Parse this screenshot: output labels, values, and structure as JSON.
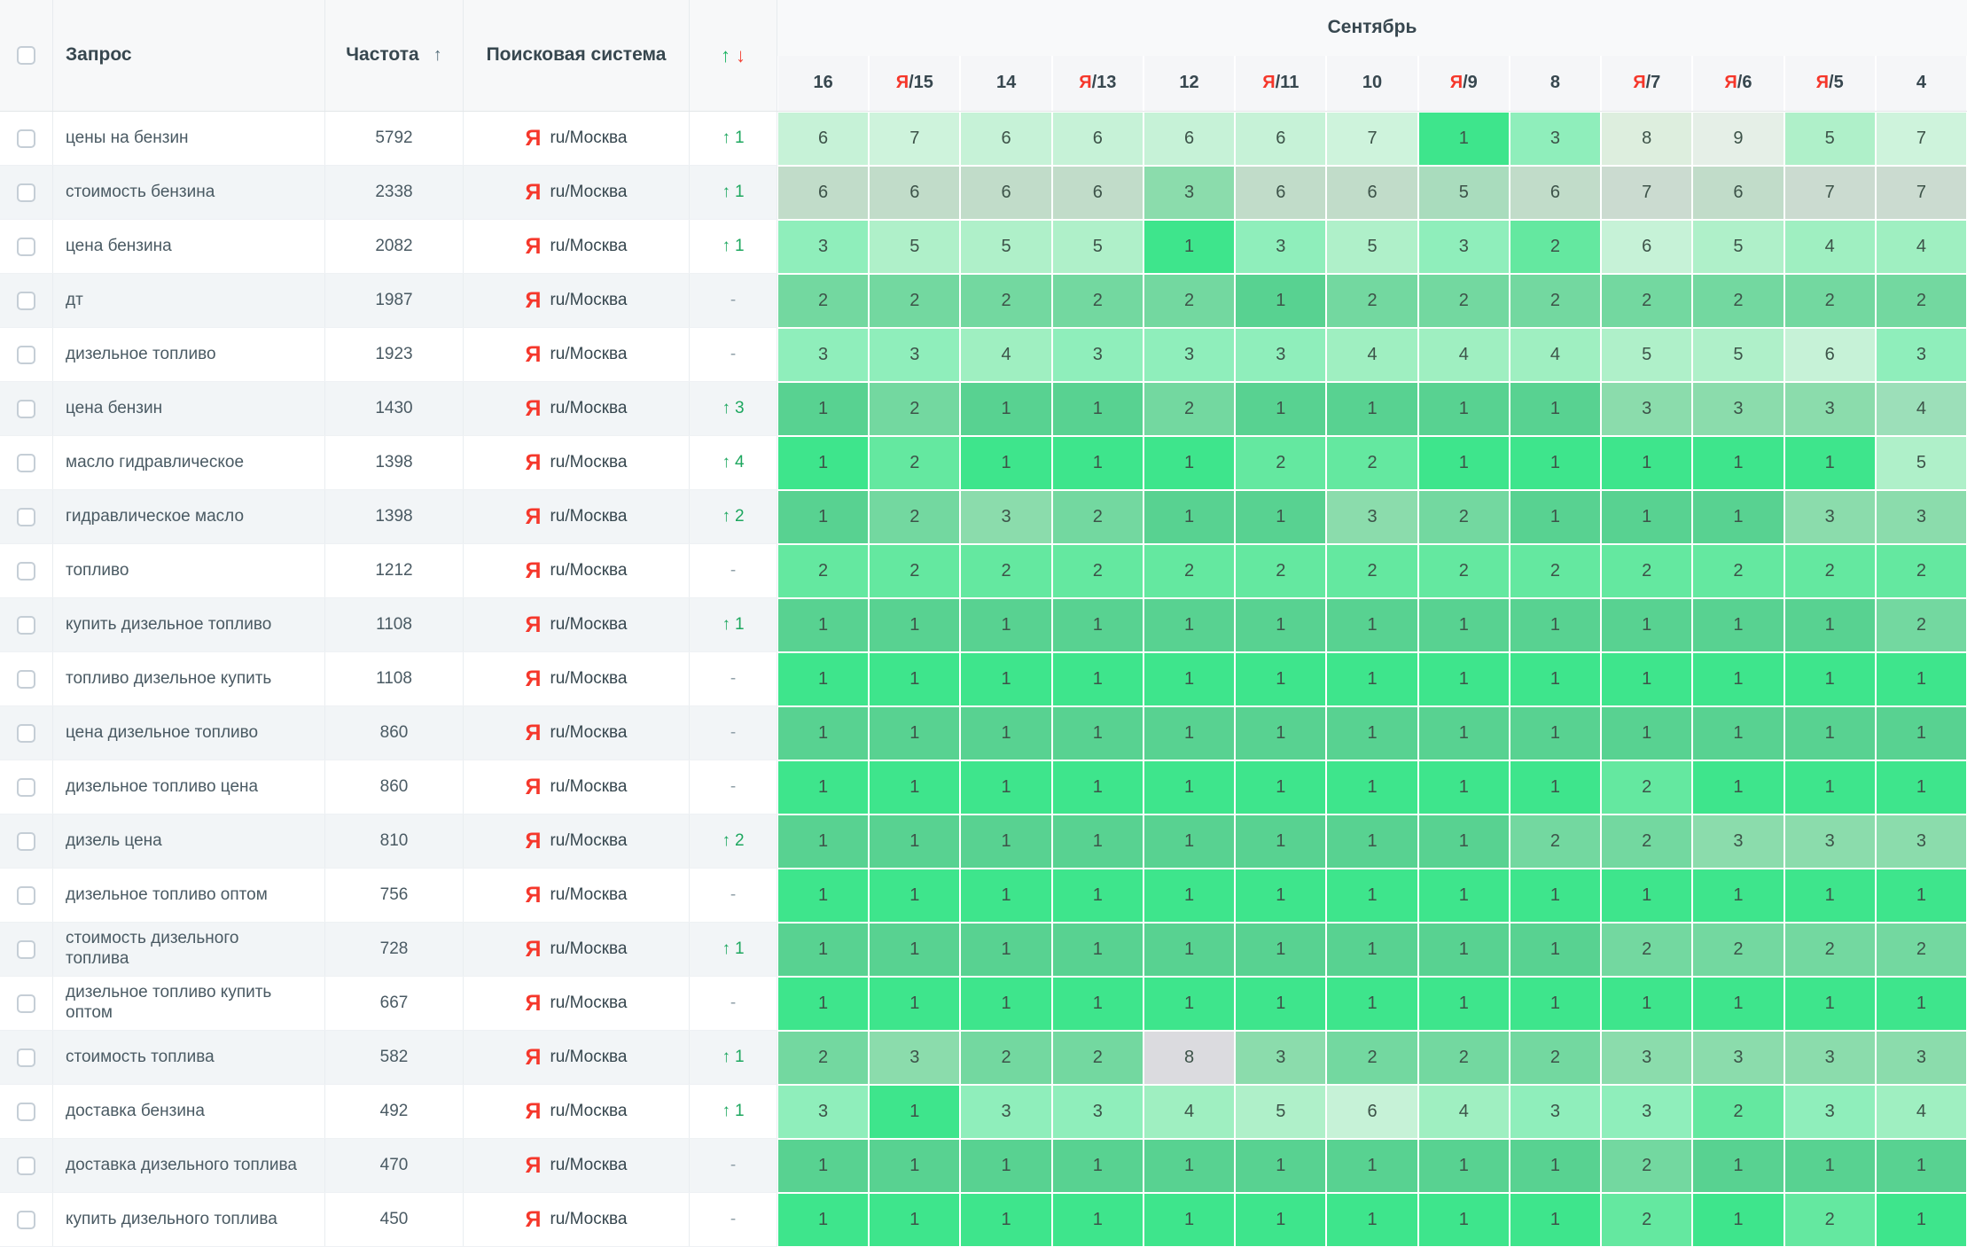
{
  "table": {
    "month": "Сентябрь",
    "columns": {
      "query": "Запрос",
      "frequency": "Частота",
      "frequency_sort_arrow": "↑",
      "engine": "Поисковая система",
      "updown_up": "↑",
      "updown_down": "↓"
    },
    "engine_label": "ru/Москва",
    "yandex_letter": "Я",
    "dash": "-",
    "change_up_arrow": "↑",
    "dates": [
      {
        "day": "16",
        "yandex": false
      },
      {
        "day": "15",
        "yandex": true
      },
      {
        "day": "14",
        "yandex": false
      },
      {
        "day": "13",
        "yandex": true
      },
      {
        "day": "12",
        "yandex": false
      },
      {
        "day": "11",
        "yandex": true
      },
      {
        "day": "10",
        "yandex": false
      },
      {
        "day": "9",
        "yandex": true
      },
      {
        "day": "8",
        "yandex": false
      },
      {
        "day": "7",
        "yandex": true
      },
      {
        "day": "6",
        "yandex": true
      },
      {
        "day": "5",
        "yandex": true
      },
      {
        "day": "4",
        "yandex": false
      }
    ]
  },
  "colors": {
    "accent_red": "#f5372b",
    "change_green": "#1ea75f",
    "stripe_bg": "#f2f5f7",
    "palette_white": {
      "1": "#3ee58c",
      "2": "#64e8a0",
      "3": "#8feebb",
      "4": "#9fefc1",
      "5": "#aff0c9",
      "6": "#c6f2d7",
      "7": "#cef3dc",
      "8": "#ddeede",
      "9": "#e5efe7"
    },
    "palette_stripe": {
      "1": "#58d291",
      "2": "#73d8a0",
      "3": "#8bdcac",
      "4": "#9cdfb9",
      "5": "#a9dcbd",
      "6": "#c1dcc9",
      "7": "#cbdbd0",
      "8": "#dbdbdf",
      "9": "#e1e4e3"
    }
  },
  "rows": [
    {
      "query": "цены на бензин",
      "frequency": "5792",
      "change": 1,
      "positions": [
        6,
        7,
        6,
        6,
        6,
        6,
        7,
        1,
        3,
        8,
        9,
        5,
        7
      ]
    },
    {
      "query": "стоимость бензина",
      "frequency": "2338",
      "change": 1,
      "positions": [
        6,
        6,
        6,
        6,
        3,
        6,
        6,
        5,
        6,
        7,
        6,
        7,
        7
      ]
    },
    {
      "query": "цена бензина",
      "frequency": "2082",
      "change": 1,
      "positions": [
        3,
        5,
        5,
        5,
        1,
        3,
        5,
        3,
        2,
        6,
        5,
        4,
        4
      ]
    },
    {
      "query": "дт",
      "frequency": "1987",
      "change": null,
      "positions": [
        2,
        2,
        2,
        2,
        2,
        1,
        2,
        2,
        2,
        2,
        2,
        2,
        2
      ]
    },
    {
      "query": "дизельное топливо",
      "frequency": "1923",
      "change": null,
      "positions": [
        3,
        3,
        4,
        3,
        3,
        3,
        4,
        4,
        4,
        5,
        5,
        6,
        3
      ]
    },
    {
      "query": "цена бензин",
      "frequency": "1430",
      "change": 3,
      "positions": [
        1,
        2,
        1,
        1,
        2,
        1,
        1,
        1,
        1,
        3,
        3,
        3,
        4
      ]
    },
    {
      "query": "масло гидравлическое",
      "frequency": "1398",
      "change": 4,
      "positions": [
        1,
        2,
        1,
        1,
        1,
        2,
        2,
        1,
        1,
        1,
        1,
        1,
        5
      ]
    },
    {
      "query": "гидравлическое масло",
      "frequency": "1398",
      "change": 2,
      "positions": [
        1,
        2,
        3,
        2,
        1,
        1,
        3,
        2,
        1,
        1,
        1,
        3,
        3
      ]
    },
    {
      "query": "топливо",
      "frequency": "1212",
      "change": null,
      "positions": [
        2,
        2,
        2,
        2,
        2,
        2,
        2,
        2,
        2,
        2,
        2,
        2,
        2
      ]
    },
    {
      "query": "купить дизельное топливо",
      "frequency": "1108",
      "change": 1,
      "positions": [
        1,
        1,
        1,
        1,
        1,
        1,
        1,
        1,
        1,
        1,
        1,
        1,
        2
      ]
    },
    {
      "query": "топливо дизельное купить",
      "frequency": "1108",
      "change": null,
      "positions": [
        1,
        1,
        1,
        1,
        1,
        1,
        1,
        1,
        1,
        1,
        1,
        1,
        1
      ]
    },
    {
      "query": "цена дизельное топливо",
      "frequency": "860",
      "change": null,
      "positions": [
        1,
        1,
        1,
        1,
        1,
        1,
        1,
        1,
        1,
        1,
        1,
        1,
        1
      ]
    },
    {
      "query": "дизельное топливо цена",
      "frequency": "860",
      "change": null,
      "positions": [
        1,
        1,
        1,
        1,
        1,
        1,
        1,
        1,
        1,
        2,
        1,
        1,
        1
      ]
    },
    {
      "query": "дизель цена",
      "frequency": "810",
      "change": 2,
      "positions": [
        1,
        1,
        1,
        1,
        1,
        1,
        1,
        1,
        2,
        2,
        3,
        3,
        3
      ]
    },
    {
      "query": "дизельное топливо оптом",
      "frequency": "756",
      "change": null,
      "positions": [
        1,
        1,
        1,
        1,
        1,
        1,
        1,
        1,
        1,
        1,
        1,
        1,
        1
      ]
    },
    {
      "query": "стоимость дизельного\nтоплива",
      "frequency": "728",
      "change": 1,
      "positions": [
        1,
        1,
        1,
        1,
        1,
        1,
        1,
        1,
        1,
        2,
        2,
        2,
        2
      ]
    },
    {
      "query": "дизельное топливо купить\nоптом",
      "frequency": "667",
      "change": null,
      "positions": [
        1,
        1,
        1,
        1,
        1,
        1,
        1,
        1,
        1,
        1,
        1,
        1,
        1
      ]
    },
    {
      "query": "стоимость топлива",
      "frequency": "582",
      "change": 1,
      "positions": [
        2,
        3,
        2,
        2,
        8,
        3,
        2,
        2,
        2,
        3,
        3,
        3,
        3
      ]
    },
    {
      "query": "доставка бензина",
      "frequency": "492",
      "change": 1,
      "positions": [
        3,
        1,
        3,
        3,
        4,
        5,
        6,
        4,
        3,
        3,
        2,
        3,
        4
      ]
    },
    {
      "query": "доставка дизельного топлива",
      "frequency": "470",
      "change": null,
      "positions": [
        1,
        1,
        1,
        1,
        1,
        1,
        1,
        1,
        1,
        2,
        1,
        1,
        1
      ]
    },
    {
      "query": "купить дизельного топлива",
      "frequency": "450",
      "change": null,
      "positions": [
        1,
        1,
        1,
        1,
        1,
        1,
        1,
        1,
        1,
        2,
        1,
        2,
        1
      ]
    }
  ]
}
